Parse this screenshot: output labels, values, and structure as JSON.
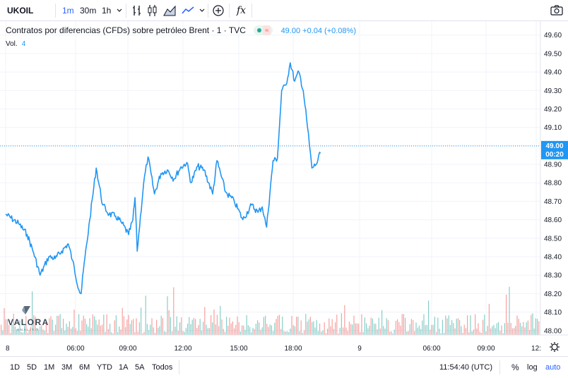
{
  "toolbar": {
    "symbol": "UKOIL",
    "intervals": [
      "1m",
      "30m",
      "1h"
    ],
    "active_interval": "1m",
    "icons": [
      "chevron-down-icon",
      "bar-style-icon",
      "candle-style-icon",
      "area-style-icon",
      "line-style-icon",
      "chevron-down-icon",
      "add-compare-icon",
      "indicators-icon",
      "camera-icon"
    ],
    "indicators_label": "fx"
  },
  "legend": {
    "title": "Contratos por diferencias (CFDs) sobre petróleo Brent · 1 · TVC",
    "price": "49.00",
    "change": "+0.04 (+0.08%)",
    "vol_label": "Vol.",
    "vol_value": "4",
    "status_colors": [
      "#26a69a",
      "#ef5350"
    ]
  },
  "colors": {
    "line": "#2196f3",
    "vol_up": "#26a69a",
    "vol_down": "#ef5350",
    "grid": "#f0f3fa",
    "axis_text": "#131722",
    "badge": "#2196f3"
  },
  "chart_data": {
    "type": "line",
    "x": [
      "8 00:00",
      "8 01:30",
      "8 02:30",
      "8 03:15",
      "8 04:00",
      "8 05:00",
      "8 05:45",
      "8 06:30",
      "8 07:15",
      "8 07:45",
      "8 08:30",
      "8 08:45",
      "8 09:00",
      "8 09:45",
      "8 10:30",
      "8 11:15",
      "8 12:00",
      "8 12:45",
      "8 13:30",
      "8 14:15",
      "8 14:45",
      "8 15:00",
      "8 15:15",
      "8 16:00",
      "8 16:30",
      "8 17:15",
      "8 18:00",
      "8 18:45",
      "8 19:30",
      "8 20:15",
      "8 21:00",
      "8 21:30",
      "8 22:15",
      "8 23:00",
      "9 00:00",
      "9 00:30",
      "9 01:30",
      "9 02:30",
      "9 03:30",
      "9 04:30",
      "9 05:15",
      "9 05:45",
      "9 06:15",
      "9 07:00",
      "9 07:30",
      "9 08:00",
      "9 08:30",
      "9 09:00",
      "9 09:30",
      "9 10:00",
      "9 10:30",
      "9 11:00",
      "9 11:30",
      "9 12:00",
      "9 12:30"
    ],
    "values": [
      48.63,
      48.58,
      48.52,
      48.42,
      48.3,
      48.4,
      48.39,
      48.43,
      48.47,
      48.38,
      48.22,
      48.2,
      48.32,
      48.6,
      48.88,
      48.68,
      48.63,
      48.62,
      48.58,
      48.52,
      48.6,
      48.72,
      48.43,
      48.8,
      48.94,
      48.74,
      48.85,
      48.87,
      48.82,
      48.88,
      48.91,
      48.8,
      48.89,
      48.87,
      48.74,
      48.92,
      48.75,
      48.7,
      48.6,
      48.68,
      48.64,
      48.67,
      48.56,
      48.92,
      48.93,
      49.3,
      49.33,
      49.45,
      49.35,
      49.4,
      49.3,
      49.1,
      48.88,
      48.9,
      48.96
    ],
    "last_price_label": "49.00",
    "countdown_label": "00:20",
    "y_ticks": [
      "49.60",
      "49.50",
      "49.40",
      "49.30",
      "49.20",
      "49.10",
      "49.00",
      "48.90",
      "48.80",
      "48.70",
      "48.60",
      "48.50",
      "48.40",
      "48.30",
      "48.20",
      "48.10",
      "48.00"
    ],
    "x_ticks": [
      "8",
      "06:00",
      "09:00",
      "12:00",
      "15:00",
      "18:00",
      "9",
      "06:00",
      "09:00",
      "12:"
    ],
    "ylim": [
      47.98,
      49.66
    ]
  },
  "bottombar": {
    "ranges": [
      "1D",
      "5D",
      "1M",
      "3M",
      "6M",
      "YTD",
      "1A",
      "5A",
      "Todos"
    ],
    "time": "11:54:40 (UTC)",
    "percent": "%",
    "log": "log",
    "auto": "auto"
  },
  "logo": {
    "text": "VALORA",
    "subtext": "ANALITIK"
  }
}
